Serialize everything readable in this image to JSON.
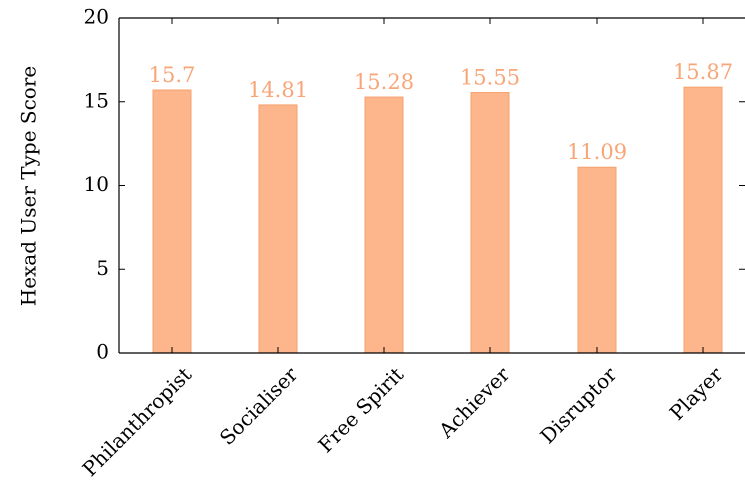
{
  "chart_data": {
    "type": "bar",
    "title": "",
    "xlabel": "",
    "ylabel": "Hexad User Type Score",
    "categories": [
      "Philanthropist",
      "Socialiser",
      "Free Spirit",
      "Achiever",
      "Disruptor",
      "Player"
    ],
    "values": [
      15.7,
      14.81,
      15.28,
      15.55,
      11.09,
      15.87
    ],
    "data_labels": [
      "15.7",
      "14.81",
      "15.28",
      "15.55",
      "11.09",
      "15.87"
    ],
    "ylim": [
      0,
      20
    ],
    "yticks": [
      0,
      5,
      10,
      15,
      20
    ],
    "ytick_labels": [
      "0",
      "5",
      "10",
      "15",
      "20"
    ],
    "grid": false,
    "legend": "none",
    "colors": {
      "bar_fill": "#fdb68c",
      "bar_stroke": "#f5a06d",
      "label": "#f8a578",
      "axis": "#000000"
    }
  }
}
